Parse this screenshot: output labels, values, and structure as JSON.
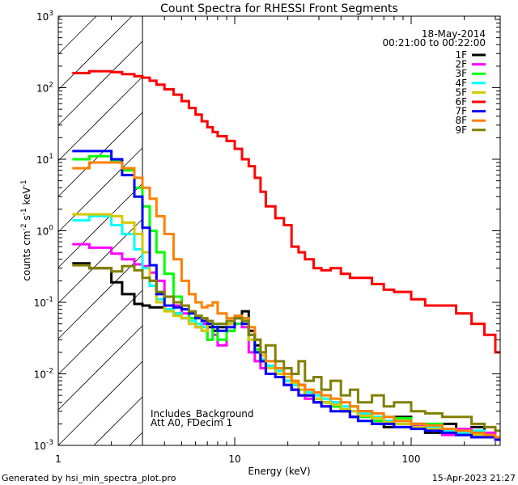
{
  "chart_data": {
    "type": "line",
    "title": "Count Spectra for RHESSI Front Segments",
    "xlabel": "Energy (keV)",
    "ylabel": {
      "base": "counts cm",
      "exp1": "-2",
      "mid": " s",
      "exp2": "-1",
      "mid2": " keV",
      "exp3": "-1"
    },
    "xscale": "log",
    "yscale": "log",
    "xlim": [
      1,
      320
    ],
    "ylim": [
      0.001,
      1000
    ],
    "x_ticks": [
      {
        "value": 1,
        "label": "1"
      },
      {
        "value": 10,
        "label": "10"
      },
      {
        "value": 100,
        "label": "100"
      }
    ],
    "y_ticks": [
      {
        "value": 0.001,
        "base": "10",
        "exp": "-3"
      },
      {
        "value": 0.01,
        "base": "10",
        "exp": "-2"
      },
      {
        "value": 0.1,
        "base": "10",
        "exp": "-1"
      },
      {
        "value": 1,
        "base": "10",
        "exp": "0"
      },
      {
        "value": 10,
        "base": "10",
        "exp": "1"
      },
      {
        "value": 100,
        "base": "10",
        "exp": "2"
      },
      {
        "value": 1000,
        "base": "10",
        "exp": "3"
      }
    ],
    "date": "18-May-2014",
    "time_range": "00:21:00 to 00:22:00",
    "shaded_region_below_keV": 3,
    "annotations": [
      "Includes_Background",
      "Att A0, FDecim 1"
    ],
    "legend_position": "top-right",
    "energy_bins": [
      1.2,
      1.5,
      2,
      2.3,
      2.7,
      3,
      3.3,
      3.6,
      4,
      4.5,
      5,
      5.5,
      6,
      6.5,
      7,
      7.5,
      8,
      9,
      10,
      11,
      12,
      13,
      14,
      15,
      17,
      19,
      21,
      23,
      25,
      28,
      31,
      35,
      40,
      45,
      50,
      60,
      70,
      80,
      100,
      120,
      150,
      180,
      220,
      260,
      300,
      320
    ],
    "series": [
      {
        "name": "1F",
        "color": "#000000",
        "values": [
          0.35,
          0.3,
          0.19,
          0.13,
          0.095,
          0.09,
          0.085,
          0.085,
          0.08,
          0.07,
          0.06,
          0.055,
          0.05,
          0.05,
          0.045,
          0.04,
          0.045,
          0.05,
          0.06,
          0.075,
          0.04,
          0.025,
          0.015,
          0.012,
          0.01,
          0.008,
          0.006,
          0.007,
          0.005,
          0.004,
          0.004,
          0.0035,
          0.003,
          0.0025,
          0.003,
          0.002,
          0.0018,
          0.0025,
          0.002,
          0.0015,
          0.002,
          0.0014,
          0.0018,
          0.0013,
          0.0012
        ]
      },
      {
        "name": "2F",
        "color": "#ff00ff",
        "values": [
          0.65,
          0.58,
          0.48,
          0.4,
          0.34,
          0.32,
          0.26,
          0.2,
          0.12,
          0.09,
          0.07,
          0.055,
          0.045,
          0.05,
          0.03,
          0.035,
          0.025,
          0.04,
          0.05,
          0.045,
          0.02,
          0.015,
          0.012,
          0.01,
          0.009,
          0.007,
          0.006,
          0.005,
          0.0045,
          0.004,
          0.0035,
          0.004,
          0.003,
          0.0025,
          0.0028,
          0.002,
          0.0022,
          0.0018,
          0.0019,
          0.0016,
          0.0014,
          0.0017,
          0.0013,
          0.0015,
          0.0012
        ]
      },
      {
        "name": "3F",
        "color": "#00ff00",
        "values": [
          10,
          11,
          9.5,
          7,
          4,
          2.2,
          1,
          0.5,
          0.25,
          0.12,
          0.08,
          0.06,
          0.05,
          0.04,
          0.03,
          0.045,
          0.03,
          0.04,
          0.05,
          0.06,
          0.03,
          0.022,
          0.015,
          0.013,
          0.01,
          0.009,
          0.007,
          0.006,
          0.005,
          0.0045,
          0.004,
          0.0035,
          0.003,
          0.0035,
          0.0025,
          0.0022,
          0.002,
          0.0024,
          0.0018,
          0.002,
          0.0016,
          0.0015,
          0.0014,
          0.0013,
          0.0012
        ]
      },
      {
        "name": "4F",
        "color": "#00ffff",
        "values": [
          1.4,
          1.6,
          1.2,
          0.9,
          0.55,
          0.3,
          0.17,
          0.11,
          0.08,
          0.07,
          0.06,
          0.055,
          0.05,
          0.045,
          0.05,
          0.045,
          0.05,
          0.055,
          0.06,
          0.05,
          0.03,
          0.02,
          0.016,
          0.013,
          0.011,
          0.008,
          0.007,
          0.006,
          0.0055,
          0.005,
          0.0045,
          0.004,
          0.0035,
          0.003,
          0.0028,
          0.0025,
          0.0022,
          0.002,
          0.002,
          0.0018,
          0.0016,
          0.0015,
          0.0016,
          0.0014,
          0.0013
        ]
      },
      {
        "name": "5F",
        "color": "#d4c800",
        "values": [
          1.7,
          1.7,
          1.6,
          1.3,
          0.9,
          0.5,
          0.2,
          0.1,
          0.075,
          0.065,
          0.06,
          0.05,
          0.045,
          0.04,
          0.05,
          0.045,
          0.04,
          0.05,
          0.06,
          0.05,
          0.03,
          0.02,
          0.018,
          0.012,
          0.01,
          0.009,
          0.0075,
          0.006,
          0.005,
          0.0045,
          0.004,
          0.0037,
          0.0032,
          0.003,
          0.0026,
          0.0024,
          0.0021,
          0.002,
          0.0018,
          0.0017,
          0.0015,
          0.0016,
          0.0014,
          0.0013,
          0.0012
        ]
      },
      {
        "name": "6F",
        "color": "#ff0000",
        "values": [
          160,
          170,
          165,
          155,
          145,
          138,
          125,
          110,
          95,
          80,
          65,
          52,
          42,
          34,
          28,
          24,
          21,
          18,
          14,
          10,
          8,
          5.5,
          3.5,
          2.2,
          1.5,
          1.2,
          0.6,
          0.5,
          0.4,
          0.3,
          0.28,
          0.3,
          0.25,
          0.22,
          0.22,
          0.18,
          0.15,
          0.14,
          0.11,
          0.09,
          0.09,
          0.07,
          0.05,
          0.035,
          0.02
        ]
      },
      {
        "name": "7F",
        "color": "#0000ff",
        "values": [
          13,
          13,
          10,
          6,
          3,
          1.1,
          0.33,
          0.13,
          0.09,
          0.085,
          0.08,
          0.07,
          0.06,
          0.055,
          0.05,
          0.045,
          0.04,
          0.045,
          0.06,
          0.05,
          0.035,
          0.02,
          0.015,
          0.01,
          0.009,
          0.007,
          0.006,
          0.005,
          0.005,
          0.004,
          0.0035,
          0.003,
          0.003,
          0.0025,
          0.0022,
          0.002,
          0.002,
          0.0018,
          0.0017,
          0.0016,
          0.0015,
          0.0014,
          0.0013,
          0.0013,
          0.0012
        ]
      },
      {
        "name": "8F",
        "color": "#ff8000",
        "values": [
          7.5,
          9,
          9,
          7.5,
          5.5,
          4,
          2.8,
          1.6,
          0.9,
          0.4,
          0.2,
          0.13,
          0.1,
          0.085,
          0.09,
          0.1,
          0.07,
          0.06,
          0.065,
          0.06,
          0.045,
          0.03,
          0.02,
          0.015,
          0.012,
          0.01,
          0.008,
          0.007,
          0.006,
          0.0055,
          0.005,
          0.0045,
          0.004,
          0.0035,
          0.003,
          0.0028,
          0.0025,
          0.0022,
          0.002,
          0.0019,
          0.0017,
          0.0016,
          0.0015,
          0.0014,
          0.0013
        ]
      },
      {
        "name": "9F",
        "color": "#808000",
        "values": [
          0.33,
          0.3,
          0.27,
          0.32,
          0.28,
          0.22,
          0.2,
          0.14,
          0.12,
          0.1,
          0.09,
          0.075,
          0.065,
          0.06,
          0.055,
          0.05,
          0.05,
          0.055,
          0.06,
          0.055,
          0.035,
          0.03,
          0.02,
          0.025,
          0.015,
          0.012,
          0.01,
          0.015,
          0.008,
          0.009,
          0.006,
          0.008,
          0.005,
          0.006,
          0.004,
          0.005,
          0.0035,
          0.004,
          0.003,
          0.0028,
          0.0025,
          0.0025,
          0.002,
          0.0018,
          0.0016
        ]
      }
    ]
  },
  "footer": {
    "generated_by": "Generated by hsi_min_spectra_plot.pro",
    "timestamp": "15-Apr-2023 21:27"
  }
}
